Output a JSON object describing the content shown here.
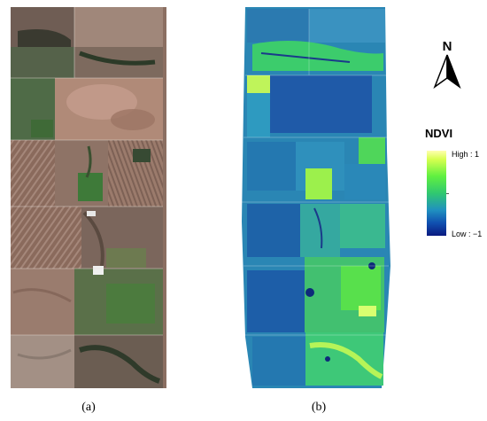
{
  "panels": [
    {
      "id": "a",
      "caption": "(a)",
      "description_icon": "rgb-satellite-image"
    },
    {
      "id": "b",
      "caption": "(b)",
      "description_icon": "ndvi-map-image"
    }
  ],
  "north_arrow": {
    "label": "N",
    "icon": "north-arrow-icon"
  },
  "legend": {
    "title": "NDVI",
    "high_label": "High : 1",
    "low_label": "Low : −1",
    "colors": [
      "#ffffb0",
      "#d8ff50",
      "#60f040",
      "#30c870",
      "#2090c0",
      "#1050b0",
      "#0a1a80"
    ]
  }
}
